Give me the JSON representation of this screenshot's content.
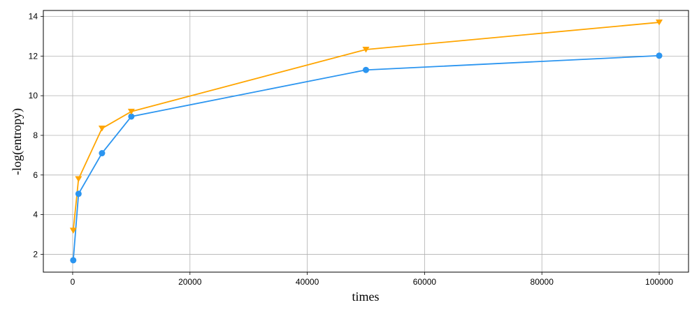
{
  "chart_data": {
    "type": "line",
    "xlabel": "times",
    "ylabel": "-log(entropy)",
    "xlim": [
      -5000,
      105000
    ],
    "ylim": [
      1.1,
      14.3
    ],
    "xticks": [
      0,
      20000,
      40000,
      60000,
      80000,
      100000
    ],
    "yticks": [
      2,
      4,
      6,
      8,
      10,
      12,
      14
    ],
    "grid": true,
    "x": [
      100,
      1000,
      5000,
      10000,
      50000,
      100000
    ],
    "series": [
      {
        "marker": "circle",
        "color": "#2b95f0",
        "values": [
          1.7,
          5.05,
          7.1,
          8.95,
          11.3,
          12.02
        ]
      },
      {
        "marker": "triangle-down",
        "color": "#ffa500",
        "values": [
          3.2,
          5.8,
          8.35,
          9.2,
          12.33,
          13.7
        ]
      }
    ]
  }
}
